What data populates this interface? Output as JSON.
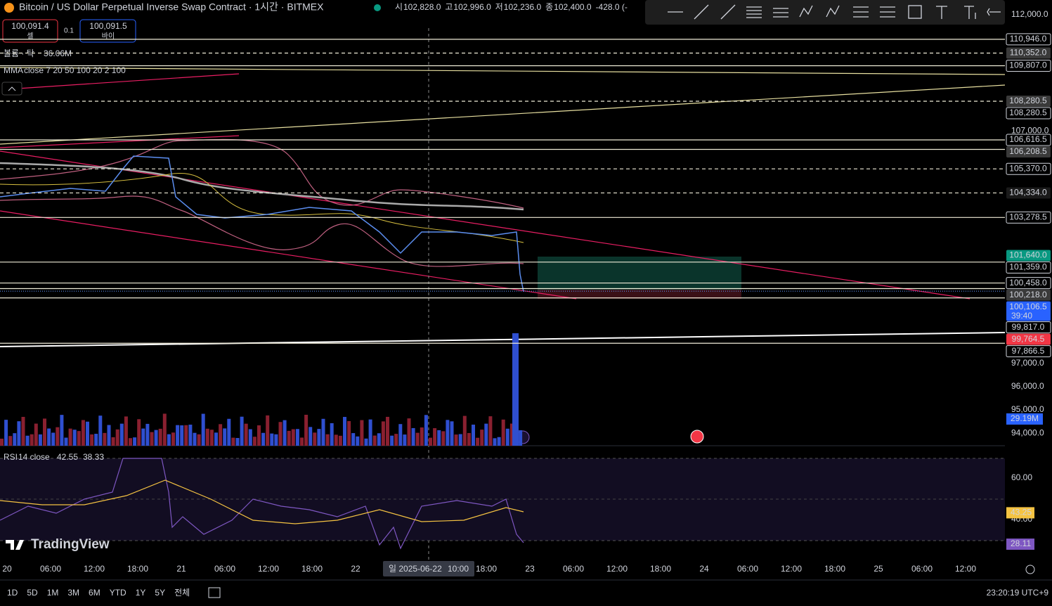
{
  "header": {
    "symbol": "Bitcoin / US Dollar Perpetual Inverse Swap Contract · 1시간 · BITMEX",
    "ohlc": [
      {
        "label": "시",
        "value": "102,828.0"
      },
      {
        "label": "고",
        "value": "102,996.0"
      },
      {
        "label": "저",
        "value": "102,236.0"
      },
      {
        "label": "종",
        "value": "102,400.0"
      }
    ],
    "change": "-428.0 (-"
  },
  "order": {
    "sell_price": "100,091.4",
    "sell_label": "셀",
    "size": "0.1",
    "buy_price": "100,091.5",
    "buy_label": "바이"
  },
  "indicators": {
    "volume": {
      "name": "볼륨 · 탁",
      "value": "36.06M"
    },
    "mma": {
      "name": "MMA",
      "params": "close 7 20 50 100 20 2 100"
    }
  },
  "price_axis": [
    "112,000.0",
    "107,000.0",
    "97,000.0",
    "96,000.0",
    "95,000.0",
    "94,000.0"
  ],
  "levels": [
    {
      "label": "110,946.0",
      "line": "solid",
      "bg": "#000000"
    },
    {
      "label": "110,352.0",
      "line": "dashed",
      "bg": "#3a3a3a"
    },
    {
      "label": "109,807.0",
      "line": "solid",
      "bg": "#000000"
    },
    {
      "label": "108,280.5",
      "line": null,
      "bg": "#3a3a3a"
    },
    {
      "label": "108,280.5",
      "line": "dashed",
      "bg": "#000000"
    },
    {
      "label": "106,616.5",
      "line": "solid",
      "bg": "#000000"
    },
    {
      "label": "106,208.5",
      "line": "solid",
      "bg": "#3a3a3a"
    },
    {
      "label": "105,370.0",
      "line": "dashed",
      "bg": "#000000"
    },
    {
      "label": "104,334.0",
      "line": "dashed",
      "bg": "#1a1a1a"
    },
    {
      "label": "103,278.5",
      "line": "solid",
      "bg": "#000000"
    },
    {
      "label": "101,640.0",
      "line": null,
      "bg": "#089981"
    },
    {
      "label": "101,359.0",
      "line": "solid",
      "bg": "#000000"
    },
    {
      "label": "100,458.0",
      "line": "solid",
      "bg": "#000000"
    },
    {
      "label": "100,218.0",
      "line": "solid",
      "bg": "#3a3a3a"
    },
    {
      "label": "100,106.5",
      "line": "dotted",
      "bg": "#2962ff",
      "sub": "39:40"
    },
    {
      "label": "99,817.0",
      "line": "solid",
      "bg": "#000000"
    },
    {
      "label": "99,764.5",
      "line": null,
      "bg": "#f23645"
    },
    {
      "label": "97,866.5",
      "line": "solid",
      "bg": "#000000"
    }
  ],
  "volume_label": {
    "label": "29.19M",
    "bg": "#2962ff"
  },
  "rsi": {
    "name": "RSI",
    "params": "14 close",
    "value": "42.55",
    "ma": "38.33",
    "axis": [
      "60.00",
      "40.00"
    ],
    "labels": [
      {
        "label": "43.25",
        "bg": "#f5c342"
      },
      {
        "label": "28.11",
        "bg": "#7e57c2"
      }
    ]
  },
  "time_axis": [
    "20",
    "06:00",
    "12:00",
    "18:00",
    "21",
    "06:00",
    "12:00",
    "18:00",
    "22",
    null,
    null,
    "18:00",
    "23",
    "06:00",
    "12:00",
    "18:00",
    "24",
    "06:00",
    "12:00",
    "18:00",
    "25",
    "06:00",
    "12:00"
  ],
  "crosshair": {
    "date": "일 2025-06-22",
    "time": "10:00"
  },
  "logo": "TradingView",
  "timeframes": [
    "1D",
    "5D",
    "1M",
    "3M",
    "6M",
    "YTD",
    "1Y",
    "5Y",
    "전체"
  ],
  "clock": "23:20:19 UTC+9"
}
